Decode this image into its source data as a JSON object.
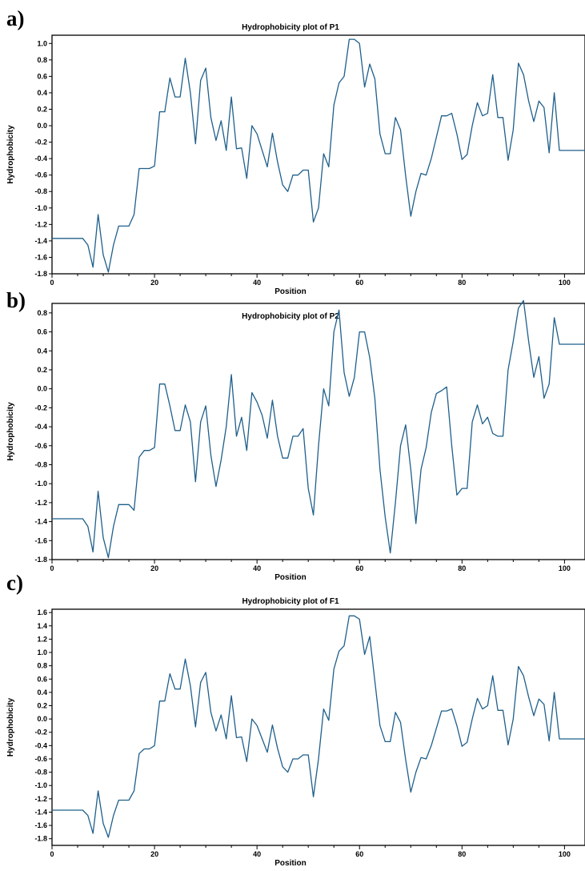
{
  "chart_data": [
    {
      "type": "line",
      "panel_label": "a)",
      "title": "Hydrophobicity plot of P1",
      "xlabel": "Position",
      "ylabel": "Hydrophobicity",
      "xlim": [
        0,
        104
      ],
      "ylim": [
        -1.8,
        1.1
      ],
      "xticks": [
        "0",
        "20",
        "40",
        "60",
        "80",
        "100"
      ],
      "yticks": [
        "1.0",
        "0.8",
        "0.6",
        "0.4",
        "0.2",
        "0.0",
        "-0.2",
        "-0.4",
        "-0.6",
        "-0.8",
        "-1.0",
        "-1.2",
        "-1.4",
        "-1.6",
        "-1.8"
      ],
      "grid": false,
      "series": [
        {
          "color": "#1f5f8b",
          "x": [
            0,
            1,
            2,
            3,
            4,
            5,
            6,
            7,
            8,
            9,
            10,
            11,
            12,
            13,
            14,
            15,
            16,
            17,
            18,
            19,
            20,
            21,
            22,
            23,
            24,
            25,
            26,
            27,
            28,
            29,
            30,
            31,
            32,
            33,
            34,
            35,
            36,
            37,
            38,
            39,
            40,
            41,
            42,
            43,
            44,
            45,
            46,
            47,
            48,
            49,
            50,
            51,
            52,
            53,
            54,
            55,
            56,
            57,
            58,
            59,
            60,
            61,
            62,
            63,
            64,
            65,
            66,
            67,
            68,
            69,
            70,
            71,
            72,
            73,
            74,
            75,
            76,
            77,
            78,
            79,
            80,
            81,
            82,
            83,
            84,
            85,
            86,
            87,
            88,
            89,
            90,
            91,
            92,
            93,
            94,
            95,
            96,
            97,
            98,
            99,
            100,
            101,
            102,
            103,
            104
          ],
          "values": [
            -1.37,
            -1.37,
            -1.37,
            -1.37,
            -1.37,
            -1.37,
            -1.37,
            -1.45,
            -1.72,
            -1.08,
            -1.57,
            -1.78,
            -1.45,
            -1.22,
            -1.22,
            -1.22,
            -1.08,
            -0.52,
            -0.52,
            -0.52,
            -0.49,
            0.17,
            0.17,
            0.58,
            0.35,
            0.35,
            0.82,
            0.4,
            -0.22,
            0.55,
            0.7,
            0.1,
            -0.18,
            0.06,
            -0.3,
            0.35,
            -0.28,
            -0.27,
            -0.64,
            0.0,
            -0.1,
            -0.3,
            -0.5,
            -0.09,
            -0.44,
            -0.72,
            -0.8,
            -0.6,
            -0.6,
            -0.54,
            -0.54,
            -1.17,
            -1.0,
            -0.34,
            -0.5,
            0.25,
            0.52,
            0.6,
            1.05,
            1.05,
            1.0,
            0.47,
            0.75,
            0.57,
            -0.1,
            -0.34,
            -0.34,
            0.1,
            -0.05,
            -0.61,
            -1.1,
            -0.8,
            -0.58,
            -0.6,
            -0.4,
            -0.14,
            0.12,
            0.12,
            0.15,
            -0.1,
            -0.41,
            -0.35,
            0.0,
            0.28,
            0.12,
            0.15,
            0.62,
            0.1,
            0.1,
            -0.42,
            -0.05,
            0.76,
            0.62,
            0.3,
            0.05,
            0.3,
            0.22,
            -0.33,
            0.4,
            -0.3,
            -0.3,
            -0.3,
            -0.3,
            -0.3,
            -0.3
          ]
        }
      ]
    },
    {
      "type": "line",
      "panel_label": "b)",
      "title": "Hydrophobicity plot of P2",
      "xlabel": "Position",
      "ylabel": "Hydrophobicity",
      "xlim": [
        0,
        104
      ],
      "ylim": [
        -1.8,
        0.9
      ],
      "xticks": [
        "0",
        "20",
        "40",
        "60",
        "80",
        "100"
      ],
      "yticks": [
        "0.8",
        "0.6",
        "0.4",
        "0.2",
        "0.0",
        "-0.2",
        "-0.4",
        "-0.6",
        "-0.8",
        "-1.0",
        "-1.2",
        "-1.4",
        "-1.6",
        "-1.8"
      ],
      "grid": false,
      "series": [
        {
          "color": "#1f5f8b",
          "x": [
            0,
            1,
            2,
            3,
            4,
            5,
            6,
            7,
            8,
            9,
            10,
            11,
            12,
            13,
            14,
            15,
            16,
            17,
            18,
            19,
            20,
            21,
            22,
            23,
            24,
            25,
            26,
            27,
            28,
            29,
            30,
            31,
            32,
            33,
            34,
            35,
            36,
            37,
            38,
            39,
            40,
            41,
            42,
            43,
            44,
            45,
            46,
            47,
            48,
            49,
            50,
            51,
            52,
            53,
            54,
            55,
            56,
            57,
            58,
            59,
            60,
            61,
            62,
            63,
            64,
            65,
            66,
            67,
            68,
            69,
            70,
            71,
            72,
            73,
            74,
            75,
            76,
            77,
            78,
            79,
            80,
            81,
            82,
            83,
            84,
            85,
            86,
            87,
            88,
            89,
            90,
            91,
            92,
            93,
            94,
            95,
            96,
            97,
            98,
            99,
            100,
            101,
            102,
            103,
            104
          ],
          "values": [
            -1.37,
            -1.37,
            -1.37,
            -1.37,
            -1.37,
            -1.37,
            -1.37,
            -1.45,
            -1.72,
            -1.08,
            -1.57,
            -1.78,
            -1.45,
            -1.22,
            -1.22,
            -1.22,
            -1.28,
            -0.72,
            -0.65,
            -0.65,
            -0.62,
            0.05,
            0.05,
            -0.18,
            -0.44,
            -0.44,
            -0.17,
            -0.35,
            -0.98,
            -0.35,
            -0.18,
            -0.7,
            -1.03,
            -0.75,
            -0.4,
            0.15,
            -0.5,
            -0.3,
            -0.65,
            -0.04,
            -0.14,
            -0.28,
            -0.52,
            -0.12,
            -0.5,
            -0.73,
            -0.73,
            -0.5,
            -0.5,
            -0.42,
            -1.05,
            -1.33,
            -0.6,
            0.0,
            -0.18,
            0.6,
            0.83,
            0.17,
            -0.08,
            0.12,
            0.6,
            0.6,
            0.33,
            -0.1,
            -0.85,
            -1.35,
            -1.73,
            -1.2,
            -0.6,
            -0.38,
            -0.85,
            -1.42,
            -0.85,
            -0.62,
            -0.25,
            -0.05,
            -0.02,
            0.02,
            -0.6,
            -1.12,
            -1.05,
            -1.05,
            -0.35,
            -0.17,
            -0.37,
            -0.3,
            -0.47,
            -0.5,
            -0.5,
            0.2,
            0.5,
            0.85,
            0.93,
            0.5,
            0.12,
            0.34,
            -0.1,
            0.05,
            0.75,
            0.47,
            0.47,
            0.47,
            0.47,
            0.47,
            0.47
          ]
        }
      ]
    },
    {
      "type": "line",
      "panel_label": "c)",
      "title": "Hydrophobicity plot of F1",
      "xlabel": "Position",
      "ylabel": "Hydrophobicity",
      "xlim": [
        0,
        104
      ],
      "ylim": [
        -1.9,
        1.65
      ],
      "xticks": [
        "0",
        "20",
        "40",
        "60",
        "80",
        "100"
      ],
      "yticks": [
        "1.6",
        "1.4",
        "1.2",
        "1.0",
        "0.8",
        "0.6",
        "0.4",
        "0.2",
        "0.0",
        "-0.2",
        "-0.4",
        "-0.6",
        "-0.8",
        "-1.0",
        "-1.2",
        "-1.4",
        "-1.6",
        "-1.8"
      ],
      "grid": false,
      "series": [
        {
          "color": "#1f5f8b",
          "x": [
            0,
            1,
            2,
            3,
            4,
            5,
            6,
            7,
            8,
            9,
            10,
            11,
            12,
            13,
            14,
            15,
            16,
            17,
            18,
            19,
            20,
            21,
            22,
            23,
            24,
            25,
            26,
            27,
            28,
            29,
            30,
            31,
            32,
            33,
            34,
            35,
            36,
            37,
            38,
            39,
            40,
            41,
            42,
            43,
            44,
            45,
            46,
            47,
            48,
            49,
            50,
            51,
            52,
            53,
            54,
            55,
            56,
            57,
            58,
            59,
            60,
            61,
            62,
            63,
            64,
            65,
            66,
            67,
            68,
            69,
            70,
            71,
            72,
            73,
            74,
            75,
            76,
            77,
            78,
            79,
            80,
            81,
            82,
            83,
            84,
            85,
            86,
            87,
            88,
            89,
            90,
            91,
            92,
            93,
            94,
            95,
            96,
            97,
            98,
            99,
            100,
            101,
            102,
            103,
            104
          ],
          "values": [
            -1.37,
            -1.37,
            -1.37,
            -1.37,
            -1.37,
            -1.37,
            -1.37,
            -1.45,
            -1.72,
            -1.08,
            -1.57,
            -1.78,
            -1.45,
            -1.22,
            -1.22,
            -1.22,
            -1.08,
            -0.52,
            -0.45,
            -0.45,
            -0.4,
            0.27,
            0.27,
            0.68,
            0.45,
            0.45,
            0.9,
            0.5,
            -0.12,
            0.55,
            0.7,
            0.1,
            -0.18,
            0.06,
            -0.3,
            0.35,
            -0.28,
            -0.27,
            -0.64,
            0.0,
            -0.1,
            -0.3,
            -0.5,
            -0.09,
            -0.44,
            -0.72,
            -0.8,
            -0.6,
            -0.6,
            -0.54,
            -0.54,
            -1.17,
            -0.6,
            0.15,
            -0.02,
            0.75,
            1.02,
            1.1,
            1.55,
            1.55,
            1.5,
            0.97,
            1.24,
            0.57,
            -0.1,
            -0.34,
            -0.34,
            0.1,
            -0.05,
            -0.61,
            -1.1,
            -0.8,
            -0.58,
            -0.6,
            -0.4,
            -0.14,
            0.12,
            0.12,
            0.15,
            -0.1,
            -0.41,
            -0.35,
            0.0,
            0.31,
            0.15,
            0.2,
            0.65,
            0.13,
            0.13,
            -0.39,
            0.0,
            0.79,
            0.65,
            0.33,
            0.05,
            0.3,
            0.22,
            -0.33,
            0.4,
            -0.3,
            -0.3,
            -0.3,
            -0.3,
            -0.3,
            -0.3
          ]
        }
      ]
    }
  ]
}
